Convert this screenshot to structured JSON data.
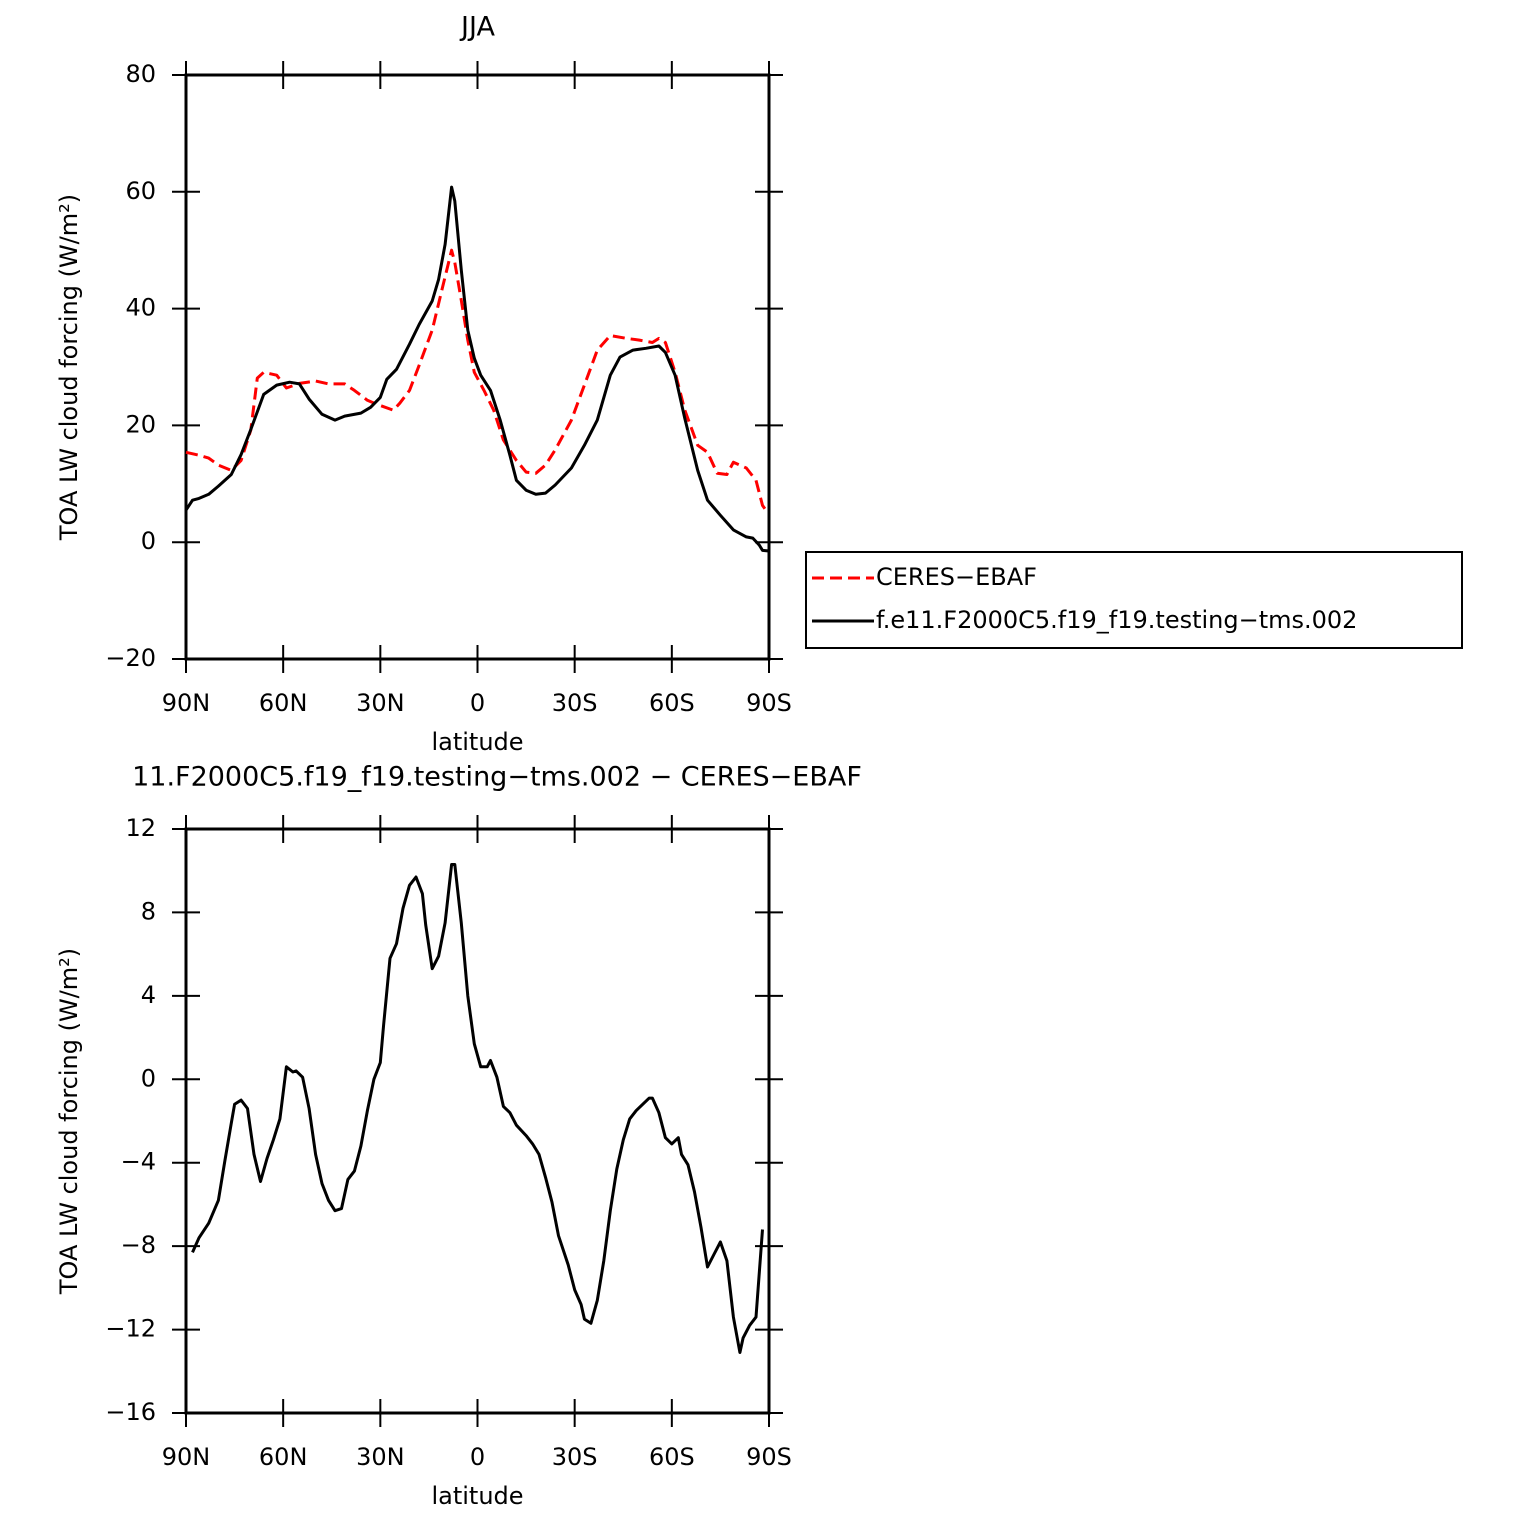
{
  "chart_data": [
    {
      "type": "line",
      "title": "JJA",
      "xlabel": "latitude",
      "ylabel": "TOA LW cloud forcing (W/m²)",
      "xlim": [
        90,
        -90
      ],
      "xticks": [
        {
          "value": 90,
          "label": "90N"
        },
        {
          "value": 60,
          "label": "60N"
        },
        {
          "value": 30,
          "label": "30N"
        },
        0,
        {
          "value": -30,
          "label": "30S"
        },
        {
          "value": -60,
          "label": "60S"
        },
        {
          "value": -90,
          "label": "90S"
        }
      ],
      "ylim": [
        -20,
        80
      ],
      "yticks": [
        {
          "value": -20,
          "label": "−20"
        },
        0,
        20,
        40,
        60,
        80
      ],
      "legend": "right",
      "series": [
        {
          "name": "CERES−EBAF",
          "color": "#ff0000",
          "linestyle": "dashed",
          "x": [
            90,
            86,
            83,
            80,
            76,
            73,
            70,
            68,
            66,
            62,
            59,
            55,
            50,
            46,
            41,
            38,
            34,
            31,
            26,
            24,
            21,
            18,
            14,
            11,
            8,
            7,
            5,
            3,
            1,
            -2,
            -5,
            -8,
            -12,
            -15,
            -18,
            -21,
            -24,
            -29,
            -33,
            -37,
            -41,
            -46,
            -50,
            -54,
            -56,
            -58,
            -61,
            -64,
            -68,
            -71,
            -74,
            -77,
            -79,
            -83,
            -86,
            -88,
            -89
          ],
          "values": [
            15.4,
            14.9,
            14.4,
            13.2,
            12.3,
            14,
            19.2,
            28.1,
            29.1,
            28.6,
            26.4,
            27.2,
            27.6,
            27.1,
            27.1,
            26,
            24.3,
            23.6,
            22.6,
            23.8,
            26,
            30.3,
            36.3,
            43.2,
            50,
            47.9,
            41.4,
            34.6,
            29.1,
            26,
            22.6,
            17.5,
            14,
            12,
            11.8,
            13.2,
            15.8,
            20.9,
            26.9,
            32.9,
            35.4,
            34.9,
            34.6,
            34.2,
            34.9,
            34.2,
            29.1,
            22.6,
            16.6,
            15.4,
            11.8,
            11.6,
            13.7,
            12.7,
            10.6,
            6.3,
            5.5
          ]
        },
        {
          "name": "f.e11.F2000C5.f19_f19.testing−tms.002",
          "color": "#000000",
          "linestyle": "solid",
          "x": [
            90,
            88,
            86,
            83,
            80,
            76,
            73,
            70,
            66,
            62,
            58,
            55,
            52,
            48,
            44,
            41,
            36,
            33,
            30,
            28,
            25,
            21,
            18,
            14,
            12,
            10,
            8,
            7,
            5,
            3,
            1,
            -1,
            -4,
            -7,
            -10,
            -12,
            -15,
            -18,
            -21,
            -24,
            -29,
            -33,
            -37,
            -41,
            -44,
            -48,
            -52,
            -56,
            -58,
            -61,
            -64,
            -68,
            -71,
            -75,
            -79,
            -83,
            -85,
            -87,
            -88,
            -90
          ],
          "values": [
            5.5,
            7.2,
            7.5,
            8.2,
            9.6,
            11.6,
            15,
            19.3,
            25.3,
            26.9,
            27.4,
            27.1,
            24.5,
            21.9,
            20.9,
            21.6,
            22.1,
            23.1,
            24.8,
            27.9,
            29.6,
            33.9,
            37.3,
            41.3,
            45,
            51,
            60.8,
            58.4,
            46.6,
            36.3,
            31.5,
            28.6,
            26,
            20.9,
            14.9,
            10.6,
            8.9,
            8.2,
            8.4,
            9.8,
            12.7,
            16.6,
            20.9,
            28.6,
            31.7,
            32.9,
            33.2,
            33.6,
            32.5,
            28.6,
            21.2,
            12.3,
            7.2,
            4.6,
            2.1,
            0.9,
            0.7,
            -0.5,
            -1.4,
            -1.5
          ]
        }
      ]
    },
    {
      "type": "line",
      "title": "11.F2000C5.f19_f19.testing−tms.002 − CERES−EBAF",
      "xlabel": "latitude",
      "ylabel": "TOA LW cloud forcing (W/m²)",
      "xlim": [
        90,
        -90
      ],
      "xticks": [
        {
          "value": 90,
          "label": "90N"
        },
        {
          "value": 60,
          "label": "60N"
        },
        {
          "value": 30,
          "label": "30N"
        },
        0,
        {
          "value": -30,
          "label": "30S"
        },
        {
          "value": -60,
          "label": "60S"
        },
        {
          "value": -90,
          "label": "90S"
        }
      ],
      "ylim": [
        -16,
        12
      ],
      "yticks": [
        {
          "value": -16,
          "label": "−16"
        },
        {
          "value": -12,
          "label": "−12"
        },
        {
          "value": -8,
          "label": "−8"
        },
        {
          "value": -4,
          "label": "−4"
        },
        0,
        4,
        8,
        12
      ],
      "series": [
        {
          "color": "#000000",
          "linestyle": "solid",
          "x": [
            88,
            86,
            83,
            80,
            78,
            76,
            75,
            73,
            71,
            69,
            67,
            65,
            63,
            61,
            59,
            57,
            56,
            54,
            52,
            50,
            48,
            46,
            44,
            42,
            40,
            38,
            36,
            34,
            32,
            30,
            29,
            27,
            25,
            23,
            21,
            19,
            17,
            16,
            14,
            12,
            10,
            8,
            7,
            5,
            3,
            1,
            -1,
            -3,
            -4,
            -6,
            -8,
            -10,
            -12,
            -15,
            -17,
            -19,
            -21,
            -23,
            -25,
            -28,
            -30,
            -32,
            -33,
            -35,
            -37,
            -39,
            -41,
            -43,
            -45,
            -47,
            -49,
            -51,
            -53,
            -54,
            -56,
            -58,
            -60,
            -62,
            -63,
            -65,
            -67,
            -69,
            -71,
            -73,
            -75,
            -77,
            -79,
            -81,
            -82,
            -84,
            -86,
            -88
          ],
          "values": [
            -8.3,
            -7.6,
            -6.9,
            -5.8,
            -3.9,
            -2.1,
            -1.2,
            -1,
            -1.4,
            -3.6,
            -4.9,
            -3.8,
            -2.9,
            -1.9,
            0.6,
            0.35,
            0.4,
            0.1,
            -1.4,
            -3.6,
            -5,
            -5.8,
            -6.3,
            -6.2,
            -4.8,
            -4.4,
            -3.2,
            -1.5,
            0,
            0.8,
            2.6,
            5.8,
            6.5,
            8.2,
            9.3,
            9.7,
            8.9,
            7.4,
            5.3,
            5.9,
            7.5,
            10.3,
            10.3,
            7.5,
            4,
            1.7,
            0.6,
            0.6,
            0.9,
            0.1,
            -1.3,
            -1.6,
            -2.2,
            -2.7,
            -3.1,
            -3.6,
            -4.7,
            -5.9,
            -7.5,
            -8.9,
            -10.1,
            -10.8,
            -11.5,
            -11.7,
            -10.6,
            -8.7,
            -6.3,
            -4.3,
            -2.9,
            -1.9,
            -1.5,
            -1.2,
            -0.9,
            -0.9,
            -1.6,
            -2.8,
            -3.1,
            -2.8,
            -3.6,
            -4.1,
            -5.4,
            -7.1,
            -9,
            -8.4,
            -7.8,
            -8.7,
            -11.4,
            -13.1,
            -12.4,
            -11.8,
            -11.4,
            -7.2
          ]
        }
      ]
    }
  ]
}
